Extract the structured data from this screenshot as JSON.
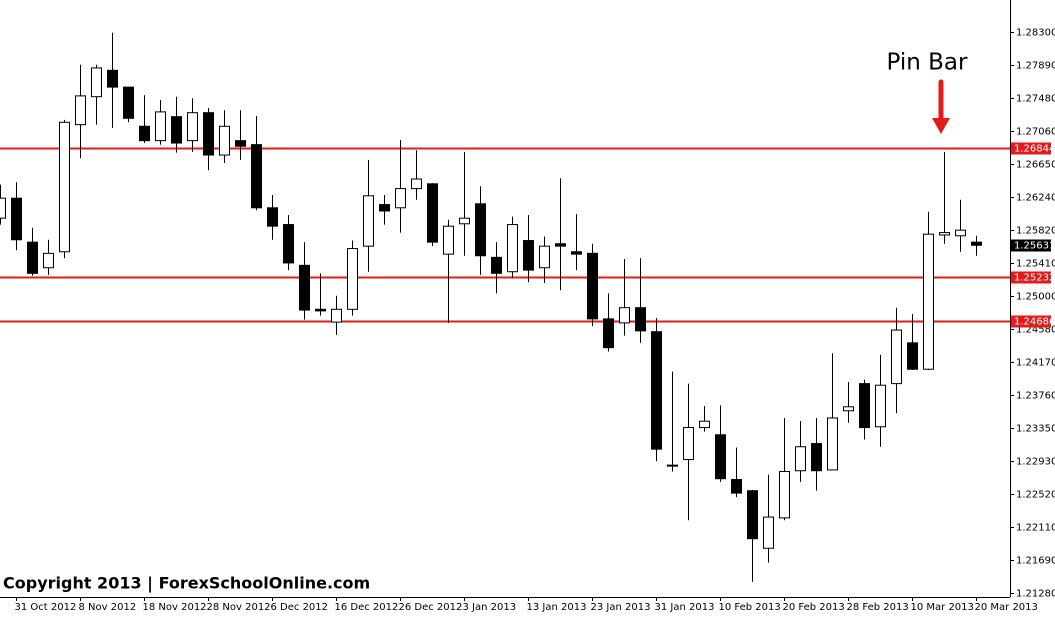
{
  "chart_data": {
    "type": "candlestick",
    "annotation": "Pin Bar",
    "watermark": "Copyright 2013 | ForexSchoolOnline.com",
    "up_color": "#ffffff",
    "down_color": "#000000",
    "level_color": "#e31b1b",
    "ylim": [
      1.2123,
      1.287
    ],
    "yticks": [
      {
        "value": 1.283,
        "label": "1.28300"
      },
      {
        "value": 1.2789,
        "label": "1.27890"
      },
      {
        "value": 1.2748,
        "label": "1.27480"
      },
      {
        "value": 1.2706,
        "label": "1.27060"
      },
      {
        "value": 1.2665,
        "label": "1.26650"
      },
      {
        "value": 1.2624,
        "label": "1.26240"
      },
      {
        "value": 1.2582,
        "label": "1.25820"
      },
      {
        "value": 1.2541,
        "label": "1.25410"
      },
      {
        "value": 1.25,
        "label": "1.25000"
      },
      {
        "value": 1.2458,
        "label": "1.24580"
      },
      {
        "value": 1.2417,
        "label": "1.24170"
      },
      {
        "value": 1.2376,
        "label": "1.23760"
      },
      {
        "value": 1.2335,
        "label": "1.23350"
      },
      {
        "value": 1.2293,
        "label": "1.22930"
      },
      {
        "value": 1.2252,
        "label": "1.22520"
      },
      {
        "value": 1.2211,
        "label": "1.22110"
      },
      {
        "value": 1.2169,
        "label": "1.21690"
      },
      {
        "value": 1.2128,
        "label": "1.21280"
      }
    ],
    "levels": [
      1.26844,
      1.25232,
      1.24686
    ],
    "categories": [
      null,
      "31 Oct 2012",
      null,
      null,
      null,
      "8 Nov 2012",
      null,
      null,
      null,
      "18 Nov 2012",
      null,
      null,
      null,
      "28 Nov 2012",
      null,
      null,
      null,
      "6 Dec 2012",
      null,
      null,
      null,
      "16 Dec 2012",
      null,
      null,
      null,
      "26 Dec 2012",
      null,
      null,
      null,
      "3 Jan 2013",
      null,
      null,
      null,
      "13 Jan 2013",
      null,
      null,
      null,
      "23 Jan 2013",
      null,
      null,
      null,
      "31 Jan 2013",
      null,
      null,
      null,
      "10 Feb 2013",
      null,
      null,
      null,
      "20 Feb 2013",
      null,
      null,
      null,
      "28 Feb 2013",
      null,
      null,
      null,
      "10 Mar 2013",
      null,
      null,
      null,
      "20 Mar 2013"
    ],
    "open": [
      1.2597,
      1.2622,
      1.2567,
      1.2535,
      1.2555,
      1.2714,
      1.2749,
      1.2782,
      1.2761,
      1.2712,
      1.2694,
      1.2724,
      1.2694,
      1.2729,
      1.2676,
      1.2694,
      1.2689,
      1.261,
      1.2589,
      1.2538,
      1.2483,
      1.2467,
      1.2483,
      1.2562,
      1.2614,
      1.261,
      1.2634,
      1.264,
      1.2552,
      1.259,
      1.2615,
      1.2548,
      1.253,
      1.2569,
      1.2535,
      1.2565,
      1.2555,
      1.2553,
      1.2471,
      1.2466,
      1.2485,
      1.2455,
      1.2288,
      1.2295,
      1.2335,
      1.2326,
      1.227,
      1.2256,
      1.2184,
      1.2222,
      1.2281,
      1.2315,
      1.2282,
      1.2356,
      1.239,
      1.2336,
      1.239,
      1.2441,
      1.2408,
      1.2576,
      1.2575,
      1.2567
    ],
    "high": [
      1.2639,
      1.2642,
      1.2585,
      1.257,
      1.272,
      1.2789,
      1.2789,
      1.2829,
      1.2761,
      1.2751,
      1.2745,
      1.2749,
      1.2747,
      1.2735,
      1.2732,
      1.2732,
      1.2725,
      1.2626,
      1.2601,
      1.2567,
      1.2528,
      1.25,
      1.2569,
      1.267,
      1.2626,
      1.2695,
      1.2682,
      1.2641,
      1.2595,
      1.268,
      1.2637,
      1.2567,
      1.2599,
      1.2601,
      1.2574,
      1.2647,
      1.2602,
      1.2565,
      1.2503,
      1.2546,
      1.2547,
      1.2472,
      1.2405,
      1.239,
      1.2362,
      1.2363,
      1.231,
      1.2257,
      1.2276,
      1.2347,
      1.2343,
      1.2347,
      1.2428,
      1.2392,
      1.2395,
      1.2426,
      1.2485,
      1.2477,
      1.2605,
      1.268,
      1.262,
      1.2575
    ],
    "low": [
      1.2589,
      1.2557,
      1.2525,
      1.2526,
      1.2547,
      1.2672,
      1.2714,
      1.271,
      1.2717,
      1.2691,
      1.2689,
      1.2679,
      1.268,
      1.2657,
      1.2666,
      1.267,
      1.2607,
      1.257,
      1.2532,
      1.247,
      1.2475,
      1.2451,
      1.2475,
      1.253,
      1.2589,
      1.2579,
      1.262,
      1.2562,
      1.2466,
      1.255,
      1.2526,
      1.2503,
      1.2522,
      1.2517,
      1.2516,
      1.2507,
      1.2532,
      1.2462,
      1.243,
      1.245,
      1.2441,
      1.2293,
      1.228,
      1.2219,
      1.233,
      1.2267,
      1.2248,
      1.2142,
      1.2166,
      1.2219,
      1.2267,
      1.2256,
      1.2282,
      1.2341,
      1.232,
      1.2311,
      1.2353,
      1.2407,
      1.2407,
      1.2565,
      1.2555,
      1.255
    ],
    "close": [
      1.2622,
      1.257,
      1.2528,
      1.2553,
      1.2717,
      1.275,
      1.2785,
      1.2761,
      1.2722,
      1.2694,
      1.273,
      1.2691,
      1.2729,
      1.2676,
      1.2712,
      1.2687,
      1.261,
      1.2587,
      1.2541,
      1.2482,
      1.2481,
      1.2483,
      1.2559,
      1.2625,
      1.2606,
      1.2634,
      1.2646,
      1.2567,
      1.2587,
      1.2597,
      1.255,
      1.2528,
      1.2589,
      1.2532,
      1.2562,
      1.2562,
      1.2552,
      1.2471,
      1.2435,
      1.2485,
      1.2456,
      1.2308,
      1.2287,
      1.2335,
      1.2343,
      1.2271,
      1.2253,
      1.2196,
      1.2223,
      1.228,
      1.2311,
      1.2281,
      1.2347,
      1.2361,
      1.2335,
      1.2388,
      1.2457,
      1.2408,
      1.2577,
      1.2579,
      1.2582,
      1.25631
    ]
  }
}
